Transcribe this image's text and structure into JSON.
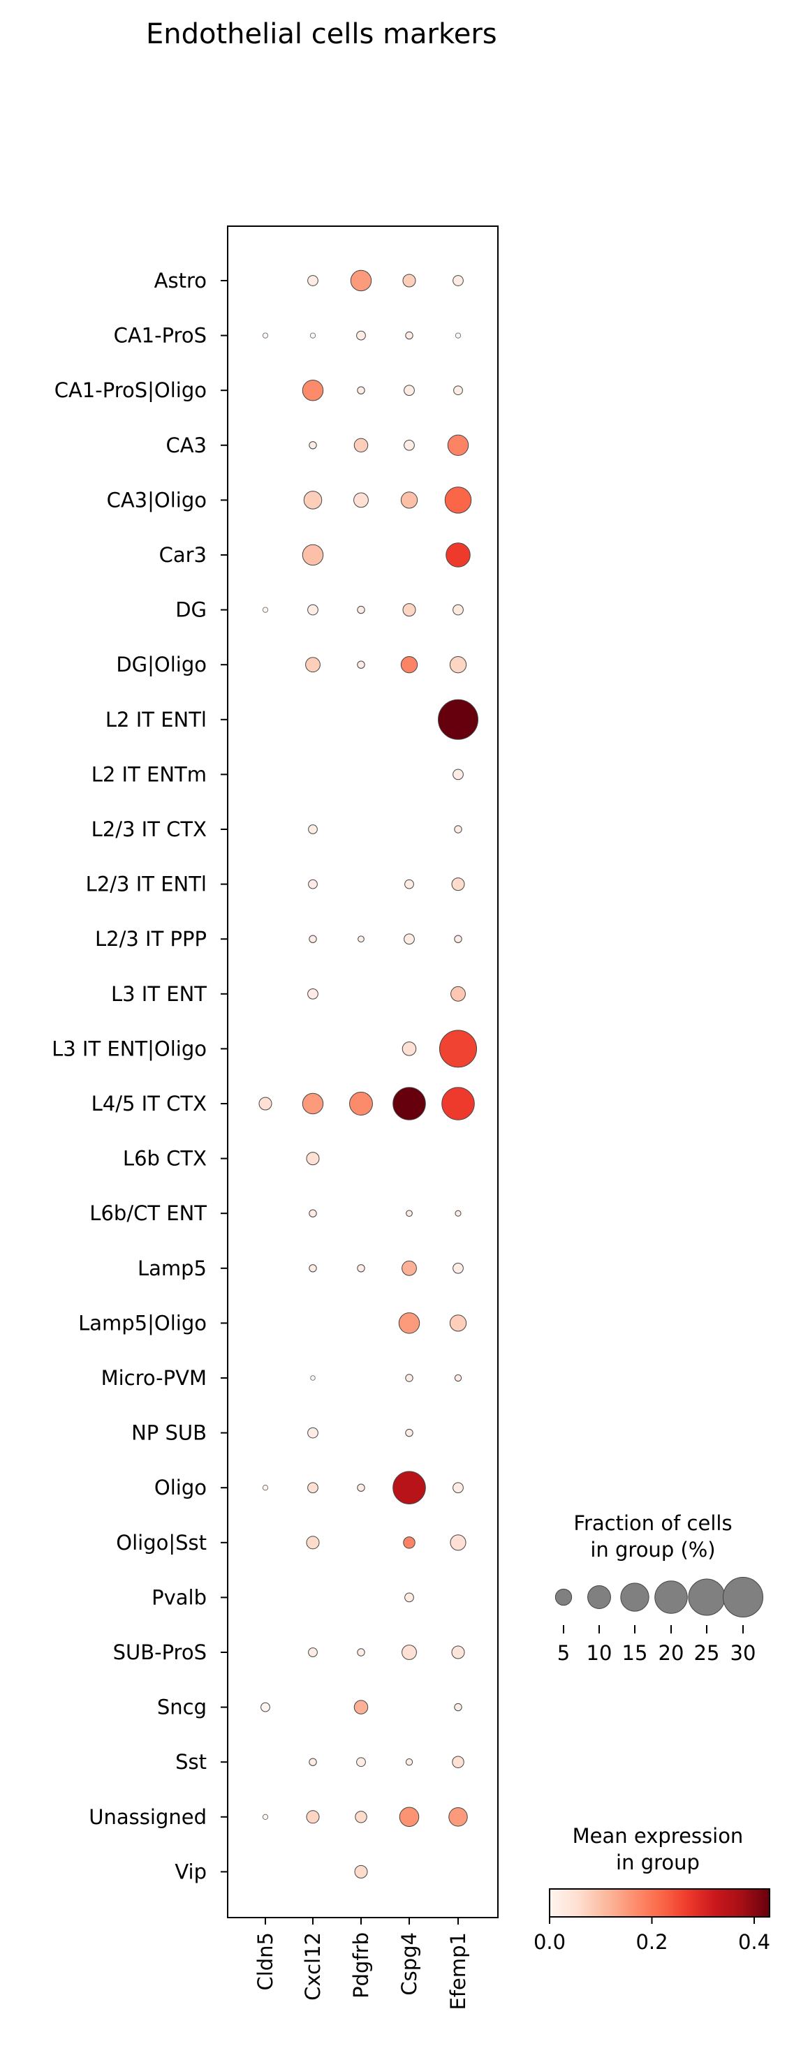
{
  "chart_data": {
    "type": "dotplot",
    "title": "Endothelial cells markers",
    "genes": [
      "Cldn5",
      "Cxcl12",
      "Pdgfrb",
      "Cspg4",
      "Efemp1"
    ],
    "groups": [
      "Astro",
      "CA1-ProS",
      "CA1-ProS|Oligo",
      "CA3",
      "CA3|Oligo",
      "Car3",
      "DG",
      "DG|Oligo",
      "L2 IT ENTl",
      "L2 IT ENTm",
      "L2/3 IT CTX",
      "L2/3 IT ENTl",
      "L2/3 IT PPP",
      "L3 IT ENT",
      "L3 IT ENT|Oligo",
      "L4/5 IT CTX",
      "L6b CTX",
      "L6b/CT ENT",
      "Lamp5",
      "Lamp5|Oligo",
      "Micro-PVM",
      "NP SUB",
      "Oligo",
      "Oligo|Sst",
      "Pvalb",
      "SUB-ProS",
      "Sncg",
      "Sst",
      "Unassigned",
      "Vip"
    ],
    "fraction_pct": [
      [
        0,
        2,
        8,
        3,
        2
      ],
      [
        0.5,
        0.5,
        1.5,
        1,
        0.5
      ],
      [
        0,
        8,
        1,
        2,
        1.5
      ],
      [
        0,
        1,
        3.5,
        2,
        8
      ],
      [
        0,
        6,
        4,
        5,
        13
      ],
      [
        0,
        8,
        0,
        0,
        11
      ],
      [
        0.5,
        2,
        1,
        3,
        2
      ],
      [
        0,
        4,
        1,
        5,
        5
      ],
      [
        0,
        0,
        0,
        0,
        30
      ],
      [
        0,
        0,
        0,
        0,
        2
      ],
      [
        0,
        1.5,
        0,
        0,
        1
      ],
      [
        0,
        1.5,
        0,
        1.5,
        3
      ],
      [
        0,
        1,
        0.7,
        2,
        1
      ],
      [
        0,
        2,
        0,
        0,
        4
      ],
      [
        0,
        0,
        0,
        3.5,
        26
      ],
      [
        3,
        8,
        10,
        20,
        20
      ],
      [
        0,
        3,
        0,
        0,
        0
      ],
      [
        0,
        1,
        0,
        0.7,
        0.6
      ],
      [
        0,
        1,
        1,
        4,
        2
      ],
      [
        0,
        0,
        0,
        8,
        5
      ],
      [
        0,
        0.4,
        0,
        1,
        0.8
      ],
      [
        0,
        2,
        0,
        1,
        0
      ],
      [
        0.5,
        2,
        1,
        20,
        2
      ],
      [
        0,
        3,
        0,
        2.5,
        4.5
      ],
      [
        0,
        0,
        0,
        1.5,
        0
      ],
      [
        0,
        1.5,
        1,
        4,
        3
      ],
      [
        1.5,
        0,
        3.5,
        0,
        1
      ],
      [
        0,
        1,
        1.5,
        0.8,
        2.5
      ],
      [
        0.5,
        3,
        2.5,
        7,
        6.5
      ],
      [
        0,
        0,
        3,
        0,
        0
      ]
    ],
    "mean_expression": [
      [
        0,
        0.02,
        0.15,
        0.08,
        0.02
      ],
      [
        0,
        0,
        0.02,
        0.02,
        0
      ],
      [
        0,
        0.17,
        0.02,
        0.02,
        0.02
      ],
      [
        0,
        0.02,
        0.08,
        0.02,
        0.18
      ],
      [
        0,
        0.08,
        0.05,
        0.1,
        0.22
      ],
      [
        0,
        0.1,
        0,
        0,
        0.27
      ],
      [
        0,
        0.02,
        0.02,
        0.07,
        0.03
      ],
      [
        0,
        0.08,
        0.02,
        0.18,
        0.07
      ],
      [
        0,
        0,
        0,
        0,
        0.43
      ],
      [
        0,
        0,
        0,
        0,
        0.02
      ],
      [
        0,
        0.02,
        0,
        0,
        0.02
      ],
      [
        0,
        0.02,
        0,
        0.02,
        0.06
      ],
      [
        0,
        0.02,
        0.02,
        0.02,
        0.02
      ],
      [
        0,
        0.02,
        0,
        0,
        0.09
      ],
      [
        0,
        0,
        0,
        0.05,
        0.26
      ],
      [
        0.05,
        0.15,
        0.17,
        0.43,
        0.27
      ],
      [
        0,
        0.05,
        0,
        0,
        0
      ],
      [
        0,
        0.02,
        0,
        0.02,
        0.02
      ],
      [
        0,
        0.02,
        0.02,
        0.12,
        0.02
      ],
      [
        0,
        0,
        0,
        0.15,
        0.08
      ],
      [
        0,
        0,
        0,
        0.02,
        0.02
      ],
      [
        0,
        0.02,
        0,
        0.02,
        0
      ],
      [
        0,
        0.05,
        0.02,
        0.35,
        0.02
      ],
      [
        0,
        0.06,
        0,
        0.18,
        0.05
      ],
      [
        0,
        0,
        0,
        0.02,
        0
      ],
      [
        0,
        0.02,
        0.02,
        0.05,
        0.04
      ],
      [
        0,
        0,
        0.12,
        0,
        0.02
      ],
      [
        0,
        0.02,
        0.02,
        0.02,
        0.05
      ],
      [
        0,
        0.07,
        0.06,
        0.16,
        0.15
      ],
      [
        0,
        0,
        0.06,
        0,
        0
      ]
    ],
    "size_legend": {
      "title": "Fraction of cells\nin group (%)",
      "values": [
        5,
        10,
        15,
        20,
        25,
        30
      ]
    },
    "color_legend": {
      "title": "Mean expression\nin group",
      "ticks": [
        0.0,
        0.2,
        0.4
      ],
      "tick_labels": [
        "0.0",
        "0.2",
        "0.4"
      ],
      "range": [
        0,
        0.43
      ],
      "colormap": "Reds"
    }
  }
}
